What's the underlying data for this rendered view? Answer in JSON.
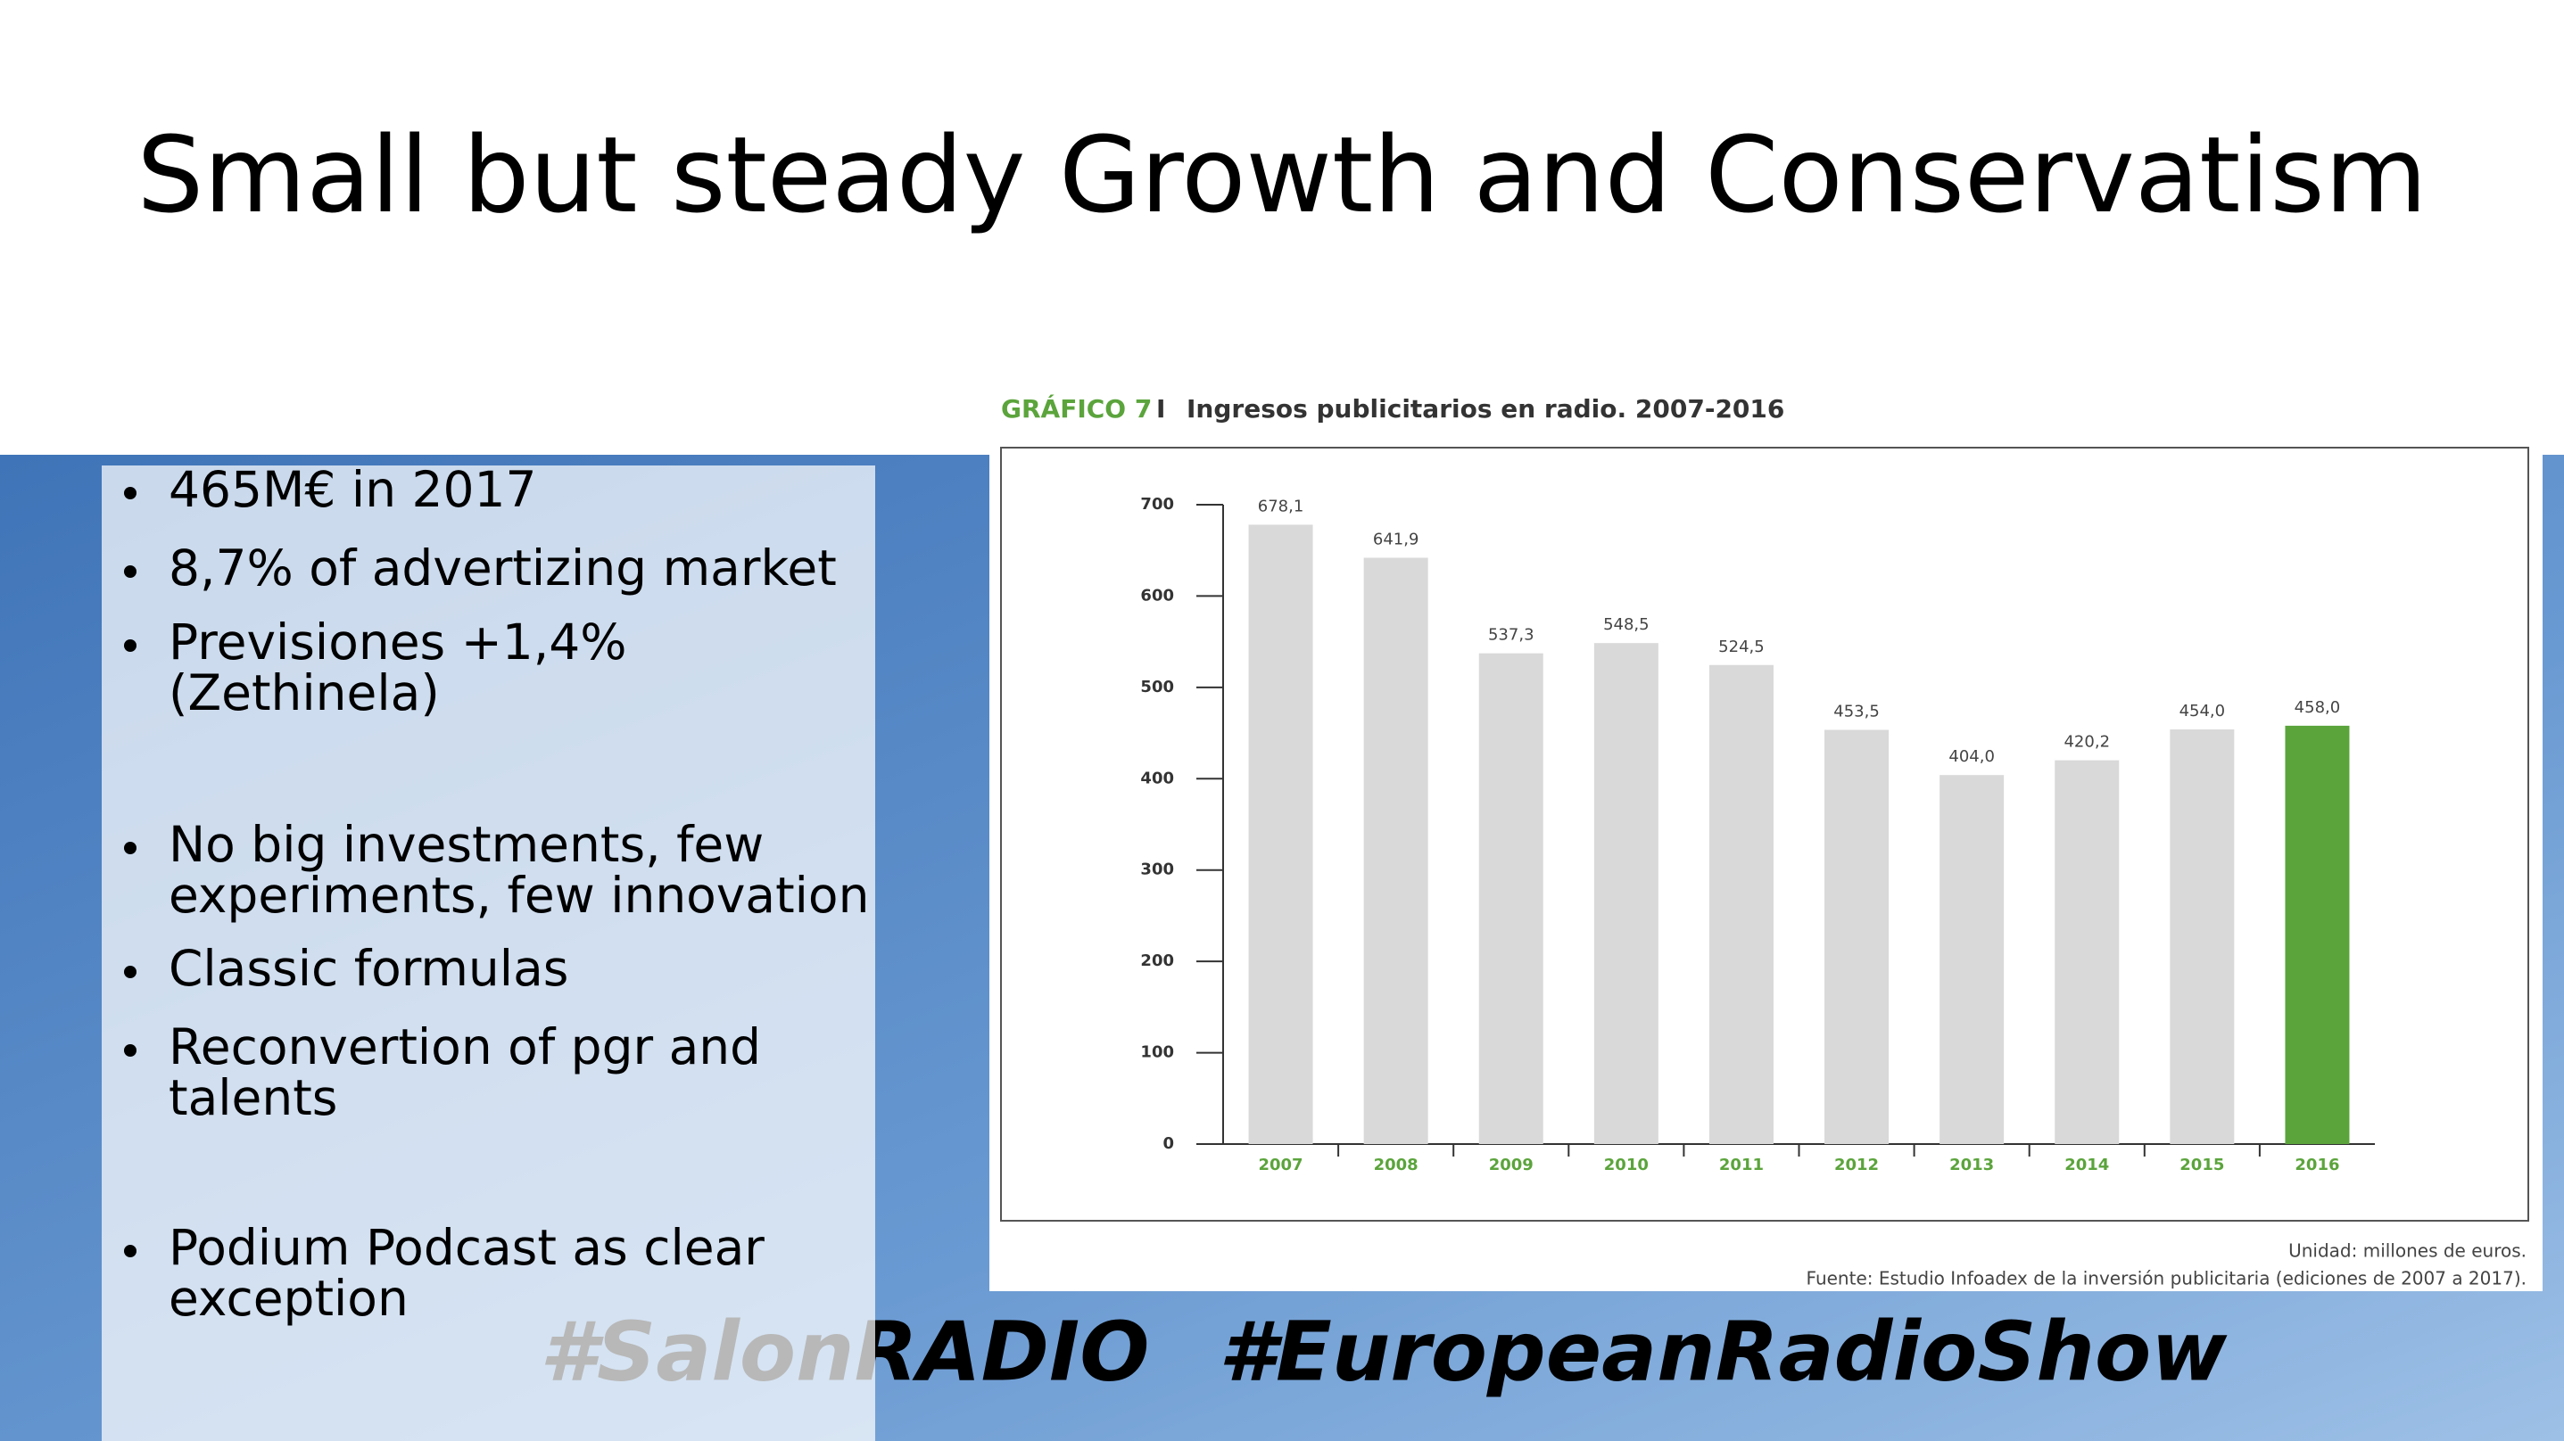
{
  "slide": {
    "title": "Small but steady Growth and Conservatism",
    "bullets": [
      [
        "465M€ in 2017"
      ],
      [
        "8,7% of advertizing market"
      ],
      [
        "Previsiones +1,4%",
        "(Zethinela)"
      ],
      [
        "No big investments, few",
        "experiments, few innovation"
      ],
      [
        "Classic formulas"
      ],
      [
        "Reconvertion of pgr and",
        "talents"
      ],
      [
        "Podium Podcast as clear",
        "exception"
      ]
    ],
    "hashtags": [
      "#SalonRADIO",
      "#EuropeanRadioShow"
    ],
    "chart_caption": {
      "label": "GRÁFICO 7",
      "separator": "I",
      "text": "Ingresos publicitarios en radio. 2007-2016"
    },
    "chart_notes": [
      "Unidad: millones de euros.",
      "Fuente: Estudio Infoadex de la inversión publicitaria (ediciones de 2007 a 2017)."
    ]
  },
  "chart_data": {
    "type": "bar",
    "categories": [
      "2007",
      "2008",
      "2009",
      "2010",
      "2011",
      "2012",
      "2013",
      "2014",
      "2015",
      "2016"
    ],
    "values": [
      678.1,
      641.9,
      537.3,
      548.5,
      524.5,
      453.5,
      404.0,
      420.2,
      454.0,
      458.0
    ],
    "value_labels": [
      "678,1",
      "641,9",
      "537,3",
      "548,5",
      "524,5",
      "453,5",
      "404,0",
      "420,2",
      "454,0",
      "458,0"
    ],
    "colors": [
      "#d9d9d9",
      "#d9d9d9",
      "#d9d9d9",
      "#d9d9d9",
      "#d9d9d9",
      "#d9d9d9",
      "#d9d9d9",
      "#d9d9d9",
      "#d9d9d9",
      "#5ba43c"
    ],
    "ylim": [
      0,
      700
    ],
    "yticks": [
      0,
      100,
      200,
      300,
      400,
      500,
      600,
      700
    ]
  }
}
